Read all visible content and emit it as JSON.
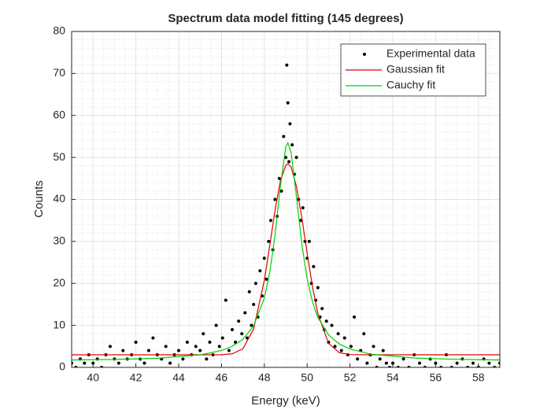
{
  "chart_data": {
    "type": "scatter",
    "title": "Spectrum data model fitting (145 degrees)",
    "x_label": "Energy (keV)",
    "y_label": "Counts",
    "xlim": [
      39,
      59
    ],
    "ylim": [
      0,
      80
    ],
    "xticks": [
      40,
      42,
      44,
      46,
      48,
      50,
      52,
      54,
      56,
      58
    ],
    "yticks": [
      0,
      10,
      20,
      30,
      40,
      50,
      60,
      70,
      80
    ],
    "grid": true,
    "minor_grid": true,
    "legend": "top-right",
    "series": [
      {
        "name": "Experimental data",
        "color": "#000000",
        "mode": "markers",
        "x": [
          39.0,
          39.2,
          39.4,
          39.6,
          39.8,
          40.0,
          40.2,
          40.4,
          40.6,
          40.8,
          41.0,
          41.2,
          41.4,
          41.6,
          41.8,
          42.0,
          42.2,
          42.4,
          42.6,
          42.8,
          43.0,
          43.2,
          43.4,
          43.6,
          43.8,
          44.0,
          44.2,
          44.4,
          44.6,
          44.8,
          45.0,
          45.15,
          45.3,
          45.45,
          45.6,
          45.75,
          45.9,
          46.05,
          46.2,
          46.35,
          46.5,
          46.65,
          46.8,
          46.95,
          47.1,
          47.2,
          47.3,
          47.4,
          47.5,
          47.6,
          47.7,
          47.8,
          47.9,
          48.0,
          48.1,
          48.2,
          48.3,
          48.4,
          48.5,
          48.6,
          48.7,
          48.8,
          48.9,
          49.0,
          49.05,
          49.1,
          49.15,
          49.2,
          49.3,
          49.4,
          49.5,
          49.6,
          49.7,
          49.8,
          49.9,
          50.0,
          50.1,
          50.2,
          50.3,
          50.4,
          50.5,
          50.6,
          50.7,
          50.8,
          50.9,
          51.0,
          51.15,
          51.3,
          51.45,
          51.6,
          51.75,
          51.9,
          52.05,
          52.2,
          52.35,
          52.5,
          52.65,
          52.8,
          52.95,
          53.1,
          53.25,
          53.4,
          53.55,
          53.7,
          53.85,
          54.0,
          54.25,
          54.5,
          54.75,
          55.0,
          55.25,
          55.5,
          55.75,
          56.0,
          56.25,
          56.5,
          56.75,
          57.0,
          57.25,
          57.5,
          57.75,
          58.0,
          58.25,
          58.5,
          58.75,
          59.0
        ],
        "values": [
          1,
          0,
          2,
          1,
          3,
          1,
          2,
          0,
          3,
          5,
          2,
          1,
          4,
          2,
          3,
          6,
          2,
          1,
          4,
          7,
          3,
          2,
          5,
          1,
          3,
          4,
          2,
          6,
          3,
          5,
          4,
          8,
          2,
          6,
          3,
          10,
          5,
          7,
          16,
          4,
          9,
          6,
          11,
          8,
          13,
          7,
          18,
          10,
          15,
          20,
          12,
          23,
          17,
          26,
          21,
          30,
          35,
          28,
          40,
          36,
          45,
          42,
          55,
          50,
          72,
          63,
          49,
          58,
          53,
          46,
          50,
          40,
          35,
          38,
          30,
          26,
          30,
          20,
          24,
          16,
          19,
          12,
          14,
          9,
          11,
          6,
          10,
          5,
          8,
          4,
          7,
          3,
          5,
          12,
          2,
          4,
          8,
          1,
          3,
          5,
          0,
          2,
          4,
          1,
          0,
          1,
          0,
          2,
          0,
          3,
          1,
          0,
          2,
          1,
          0,
          3,
          0,
          1,
          2,
          0,
          1,
          0,
          2,
          1,
          0,
          1
        ]
      },
      {
        "name": "Gaussian fit",
        "color": "#e00000",
        "mode": "line",
        "x": [
          39,
          41,
          43,
          45,
          46,
          46.5,
          47,
          47.5,
          48,
          48.25,
          48.5,
          48.75,
          49,
          49.1,
          49.25,
          49.5,
          49.75,
          50,
          50.25,
          50.5,
          51,
          51.5,
          52,
          53,
          55,
          57,
          59
        ],
        "values": [
          3,
          3,
          3,
          3,
          3.02,
          3.23,
          4.45,
          9.16,
          20.7,
          28.9,
          37.4,
          44.4,
          48.1,
          48.5,
          47.7,
          43.1,
          35.7,
          27.2,
          19.2,
          12.8,
          5.71,
          3.5,
          3.06,
          3,
          3,
          3,
          3
        ]
      },
      {
        "name": "Cauchy fit",
        "color": "#00d000",
        "mode": "line",
        "x": [
          39,
          41,
          43,
          45,
          46,
          46.5,
          47,
          47.5,
          48,
          48.25,
          48.5,
          48.75,
          49,
          49.1,
          49.25,
          49.5,
          49.75,
          50,
          50.25,
          50.5,
          51,
          51.5,
          52,
          53,
          55,
          57,
          59
        ],
        "values": [
          1.75,
          1.88,
          2.18,
          2.97,
          4.02,
          5.01,
          6.7,
          9.86,
          16.5,
          22.5,
          31.5,
          43.1,
          52.5,
          53.5,
          51.2,
          40.7,
          29.4,
          21.1,
          15.6,
          11.9,
          7.71,
          5.58,
          4.36,
          3.13,
          2.22,
          1.91,
          1.76
        ]
      }
    ]
  }
}
